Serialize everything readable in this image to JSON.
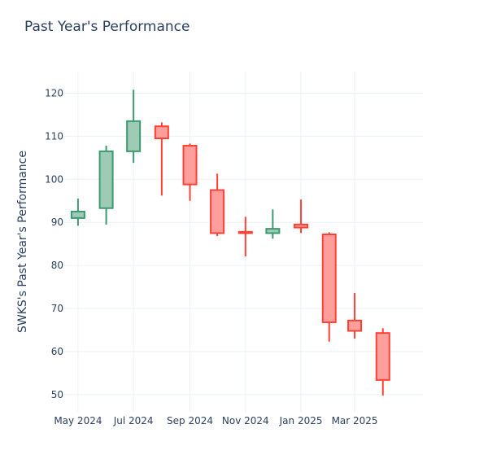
{
  "chart_data": {
    "type": "candlestick",
    "title": "Past Year's Performance",
    "ylabel": "SWKS's Past Year's Performance",
    "xlabel": "",
    "ylim": [
      46,
      125
    ],
    "yticks": [
      50,
      60,
      70,
      80,
      90,
      100,
      110,
      120
    ],
    "xlim": [
      "2024-04-15",
      "2025-05-15"
    ],
    "xticks": [
      {
        "date": "2024-05-01",
        "label": "May 2024"
      },
      {
        "date": "2024-07-01",
        "label": "Jul 2024"
      },
      {
        "date": "2024-09-01",
        "label": "Sep 2024"
      },
      {
        "date": "2024-11-01",
        "label": "Nov 2024"
      },
      {
        "date": "2025-01-01",
        "label": "Jan 2025"
      },
      {
        "date": "2025-03-01",
        "label": "Mar 2025"
      }
    ],
    "increasing_color": "#3d9970",
    "decreasing_color": "#ff4136",
    "increasing_fill": "#9ecbb5",
    "decreasing_fill": "#ff9f9b",
    "grid": true,
    "legend": "none",
    "candles": [
      {
        "date": "2024-05-01",
        "open": 91.0,
        "high": 95.5,
        "low": 89.2,
        "close": 92.5
      },
      {
        "date": "2024-06-01",
        "open": 93.3,
        "high": 107.8,
        "low": 89.5,
        "close": 106.5
      },
      {
        "date": "2024-07-01",
        "open": 106.5,
        "high": 120.8,
        "low": 103.8,
        "close": 113.5
      },
      {
        "date": "2024-08-01",
        "open": 112.3,
        "high": 113.2,
        "low": 96.2,
        "close": 109.5
      },
      {
        "date": "2024-09-01",
        "open": 107.8,
        "high": 108.3,
        "low": 95.0,
        "close": 98.8
      },
      {
        "date": "2024-10-01",
        "open": 97.5,
        "high": 101.3,
        "low": 86.8,
        "close": 87.5
      },
      {
        "date": "2024-11-01",
        "open": 87.8,
        "high": 91.3,
        "low": 82.1,
        "close": 87.5
      },
      {
        "date": "2024-12-01",
        "open": 87.5,
        "high": 93.0,
        "low": 86.2,
        "close": 88.5
      },
      {
        "date": "2025-01-01",
        "open": 89.5,
        "high": 95.3,
        "low": 87.5,
        "close": 88.8
      },
      {
        "date": "2025-02-01",
        "open": 87.2,
        "high": 87.7,
        "low": 62.3,
        "close": 66.8
      },
      {
        "date": "2025-03-01",
        "open": 67.2,
        "high": 73.6,
        "low": 63.0,
        "close": 64.8
      },
      {
        "date": "2025-04-01",
        "open": 64.3,
        "high": 65.4,
        "low": 49.8,
        "close": 53.4
      }
    ]
  }
}
